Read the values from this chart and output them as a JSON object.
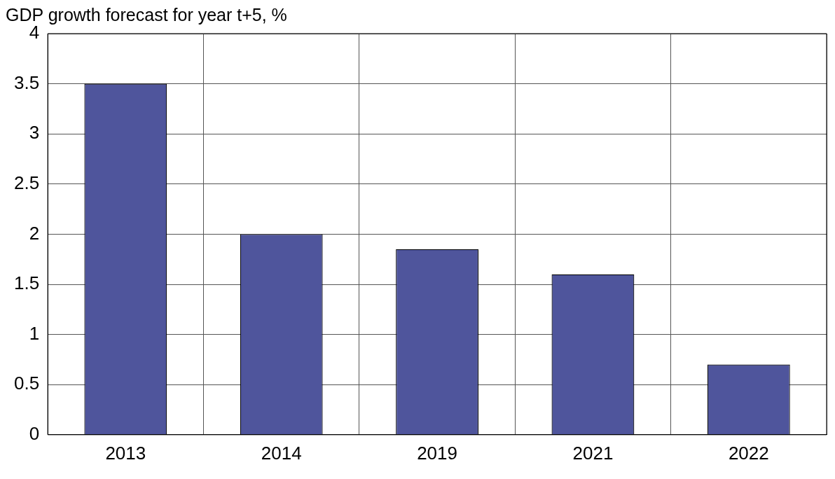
{
  "chart_data": {
    "type": "bar",
    "title": "GDP growth forecast for year t+5, %",
    "categories": [
      "2013",
      "2014",
      "2019",
      "2021",
      "2022"
    ],
    "values": [
      3.5,
      2.0,
      1.85,
      1.6,
      0.7
    ],
    "color": "#4f559c",
    "ylim": [
      0,
      4
    ],
    "yticks": [
      0,
      0.5,
      1,
      1.5,
      2,
      2.5,
      3,
      3.5,
      4
    ],
    "grid": true
  }
}
